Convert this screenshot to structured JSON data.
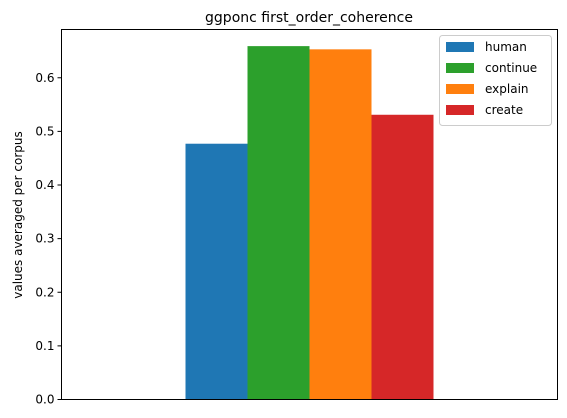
{
  "chart_data": {
    "type": "bar",
    "title": "ggponc first_order_coherence",
    "xlabel": "",
    "ylabel": "values averaged per corpus",
    "categories": [
      ""
    ],
    "series": [
      {
        "name": "human",
        "values": [
          0.477
        ],
        "color": "#1f77b4"
      },
      {
        "name": "continue",
        "values": [
          0.659
        ],
        "color": "#2ca02c"
      },
      {
        "name": "explain",
        "values": [
          0.653
        ],
        "color": "#ff7f0e"
      },
      {
        "name": "create",
        "values": [
          0.531
        ],
        "color": "#d62728"
      }
    ],
    "ylim": [
      0,
      0.69
    ],
    "yticks": [
      0.0,
      0.1,
      0.2,
      0.3,
      0.4,
      0.5,
      0.6
    ],
    "ytick_labels": [
      "0.0",
      "0.1",
      "0.2",
      "0.3",
      "0.4",
      "0.5",
      "0.6"
    ],
    "grid": false,
    "legend_position": "top-right"
  }
}
